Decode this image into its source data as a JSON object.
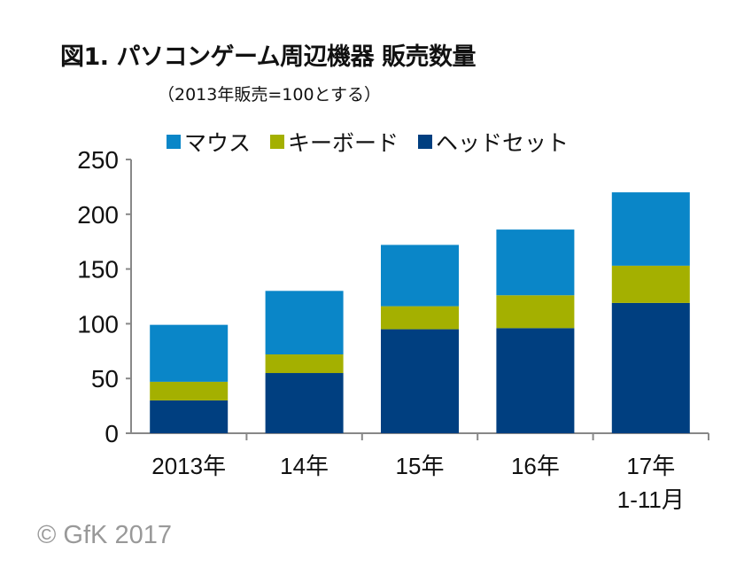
{
  "chart_data": {
    "type": "bar",
    "stacked": true,
    "title": "図1. パソコンゲーム周辺機器 販売数量",
    "subtitle": "（2013年販売=100とする）",
    "categories": [
      "2013年",
      "14年",
      "15年",
      "16年",
      "17年\n1-11月"
    ],
    "series": [
      {
        "name": "ヘッドセット",
        "color": "#003f80",
        "values": [
          30,
          55,
          95,
          96,
          119
        ]
      },
      {
        "name": "キーボード",
        "color": "#a4b000",
        "values": [
          17,
          17,
          21,
          30,
          34
        ]
      },
      {
        "name": "マウス",
        "color": "#0a86c8",
        "values": [
          52,
          58,
          56,
          60,
          67
        ]
      }
    ],
    "legend_order": [
      "マウス",
      "キーボード",
      "ヘッドセット"
    ],
    "ylim": [
      0,
      250
    ],
    "yticks": [
      0,
      50,
      100,
      150,
      200,
      250
    ],
    "grid": false,
    "legend_position": "top"
  },
  "copyright": "© GfK 2017"
}
